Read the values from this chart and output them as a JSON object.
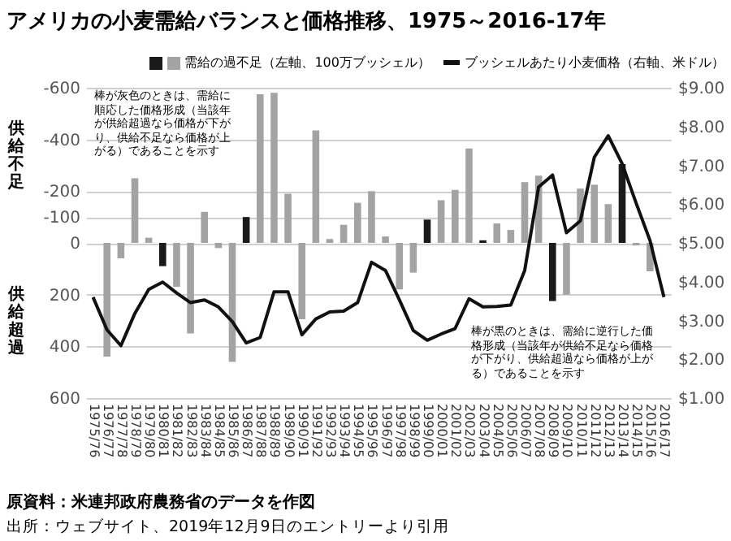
{
  "chart_data": {
    "type": "bar",
    "title": "アメリカの小麦需給バランスと価格推移、1975～2016-17年",
    "categories": [
      "1975/76",
      "1976/77",
      "1977/78",
      "1978/79",
      "1979/80",
      "1980/81",
      "1981/82",
      "1982/83",
      "1983/84",
      "1984/85",
      "1985/86",
      "1986/87",
      "1987/88",
      "1988/89",
      "1989/90",
      "1990/91",
      "1991/92",
      "1992/93",
      "1993/94",
      "1994/95",
      "1995/96",
      "1996/97",
      "1997/98",
      "1998/99",
      "1999/00",
      "2000/01",
      "2001/02",
      "2002/03",
      "2003/04",
      "2004/05",
      "2005/06",
      "2006/07",
      "2007/08",
      "2008/09",
      "2009/10",
      "2010/11",
      "2011/12",
      "2012/13",
      "2013/14",
      "2014/15",
      "2015/16",
      "2016/17"
    ],
    "series": [
      {
        "name": "需給の過不足（左軸、100万ブッシェル）",
        "axis": "y",
        "color": "#a3a3a3",
        "colors": [
          "#a3a3a3",
          "#a3a3a3",
          "#a3a3a3",
          "#a3a3a3",
          "#a3a3a3",
          "#1a1a1a",
          "#a3a3a3",
          "#a3a3a3",
          "#a3a3a3",
          "#a3a3a3",
          "#a3a3a3",
          "#1a1a1a",
          "#a3a3a3",
          "#a3a3a3",
          "#a3a3a3",
          "#a3a3a3",
          "#a3a3a3",
          "#a3a3a3",
          "#a3a3a3",
          "#a3a3a3",
          "#a3a3a3",
          "#a3a3a3",
          "#a3a3a3",
          "#a3a3a3",
          "#1a1a1a",
          "#a3a3a3",
          "#a3a3a3",
          "#a3a3a3",
          "#1a1a1a",
          "#a3a3a3",
          "#a3a3a3",
          "#a3a3a3",
          "#a3a3a3",
          "#1a1a1a",
          "#a3a3a3",
          "#a3a3a3",
          "#a3a3a3",
          "#a3a3a3",
          "#1a1a1a",
          "#a3a3a3",
          "#a3a3a3",
          "#a3a3a3"
        ],
        "values": [
          null,
          440,
          60,
          -250,
          -20,
          90,
          170,
          350,
          -120,
          20,
          460,
          -100,
          -575,
          -580,
          -190,
          295,
          -435,
          -15,
          -70,
          -155,
          -200,
          -25,
          180,
          115,
          -90,
          -165,
          -205,
          -365,
          -10,
          -75,
          -50,
          -235,
          -260,
          225,
          200,
          -210,
          -225,
          -150,
          -305,
          10,
          110,
          null
        ]
      },
      {
        "name": "ブッシェルあたり小麦価格（右軸、米ドル）",
        "type": "line",
        "axis": "y2",
        "color": "#111111",
        "values": [
          3.6,
          2.76,
          2.35,
          3.18,
          3.8,
          3.99,
          3.71,
          3.46,
          3.53,
          3.35,
          2.97,
          2.42,
          2.56,
          3.74,
          3.74,
          2.63,
          3.04,
          3.22,
          3.24,
          3.46,
          4.5,
          4.29,
          3.53,
          2.74,
          2.49,
          2.65,
          2.79,
          3.56,
          3.35,
          3.36,
          3.4,
          4.29,
          6.44,
          6.75,
          5.26,
          5.57,
          7.21,
          7.76,
          7.04,
          6.03,
          5.06,
          3.6
        ]
      }
    ],
    "ylim": [
      600,
      -600
    ],
    "yticks": [
      -600,
      -400,
      -200,
      -100,
      0,
      200,
      400,
      600
    ],
    "y2lim": [
      1,
      9
    ],
    "y2ticks": [
      {
        "value": 1,
        "label": "$1.00"
      },
      {
        "value": 2,
        "label": "$2.00"
      },
      {
        "value": 3,
        "label": "$3.00"
      },
      {
        "value": 4,
        "label": "$4.00"
      },
      {
        "value": 5,
        "label": "$5.00"
      },
      {
        "value": 6,
        "label": "$6.00"
      },
      {
        "value": 7,
        "label": "$7.00"
      },
      {
        "value": 8,
        "label": "$8.00"
      },
      {
        "value": 9,
        "label": "$9.00"
      }
    ],
    "grid": "y",
    "legend": "top",
    "annotations": [
      "供給不足",
      "供給超過",
      "棒が灰色のときは、需給に順応した価格形成（当該年が供給超過なら価格が下がり、供給不足なら価格が上がる）であることを示す",
      "棒が黒のときは、需給に逆行した価格形成（当該年が供給不足なら価格が下がり、供給超過なら価格が上がる）であることを示す",
      "原資料：米連邦政府農務省のデータを作図",
      "出所：ウェブサイト、2019年12月9日のエントリーより引用"
    ]
  }
}
